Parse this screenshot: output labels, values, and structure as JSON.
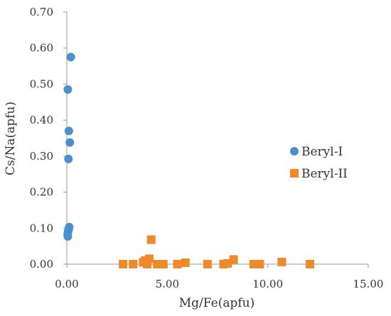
{
  "chart_data": {
    "type": "scatter",
    "title": "",
    "xlabel": "Mg/Fe(apfu)",
    "ylabel": "Cs/Na(apfu)",
    "xlim": [
      0,
      15
    ],
    "ylim": [
      0,
      0.7
    ],
    "x_ticks": [
      "0.00",
      "5.00",
      "10.00",
      "15.00"
    ],
    "y_ticks": [
      "0.00",
      "0.10",
      "0.20",
      "0.30",
      "0.40",
      "0.50",
      "0.60",
      "0.70"
    ],
    "x_tick_values": [
      0,
      5,
      10,
      15
    ],
    "y_tick_values": [
      0,
      0.1,
      0.2,
      0.3,
      0.4,
      0.5,
      0.6,
      0.7
    ],
    "grid": false,
    "legend_position": "right",
    "series": [
      {
        "name": "Beryl-I",
        "marker": "circle",
        "color": "#4a90d0",
        "points": [
          {
            "x": 0.2,
            "y": 0.575
          },
          {
            "x": 0.05,
            "y": 0.485
          },
          {
            "x": 0.1,
            "y": 0.37
          },
          {
            "x": 0.15,
            "y": 0.338
          },
          {
            "x": 0.08,
            "y": 0.292
          },
          {
            "x": 0.12,
            "y": 0.103
          },
          {
            "x": 0.1,
            "y": 0.098
          },
          {
            "x": 0.06,
            "y": 0.09
          },
          {
            "x": 0.04,
            "y": 0.082
          },
          {
            "x": 0.05,
            "y": 0.077
          }
        ]
      },
      {
        "name": "Beryl-II",
        "marker": "square",
        "color": "#ee8a2a",
        "points": [
          {
            "x": 2.8,
            "y": 0.0
          },
          {
            "x": 3.3,
            "y": 0.0
          },
          {
            "x": 3.8,
            "y": 0.005
          },
          {
            "x": 3.9,
            "y": 0.01
          },
          {
            "x": 4.0,
            "y": 0.0
          },
          {
            "x": 4.1,
            "y": 0.015
          },
          {
            "x": 4.2,
            "y": 0.068
          },
          {
            "x": 4.5,
            "y": 0.0
          },
          {
            "x": 4.8,
            "y": 0.0
          },
          {
            "x": 5.5,
            "y": 0.0
          },
          {
            "x": 5.9,
            "y": 0.004
          },
          {
            "x": 7.0,
            "y": 0.0
          },
          {
            "x": 7.8,
            "y": 0.0
          },
          {
            "x": 8.0,
            "y": 0.002
          },
          {
            "x": 8.3,
            "y": 0.013
          },
          {
            "x": 9.3,
            "y": 0.0
          },
          {
            "x": 9.6,
            "y": 0.0
          },
          {
            "x": 10.7,
            "y": 0.006
          },
          {
            "x": 12.1,
            "y": 0.0
          }
        ]
      }
    ]
  }
}
